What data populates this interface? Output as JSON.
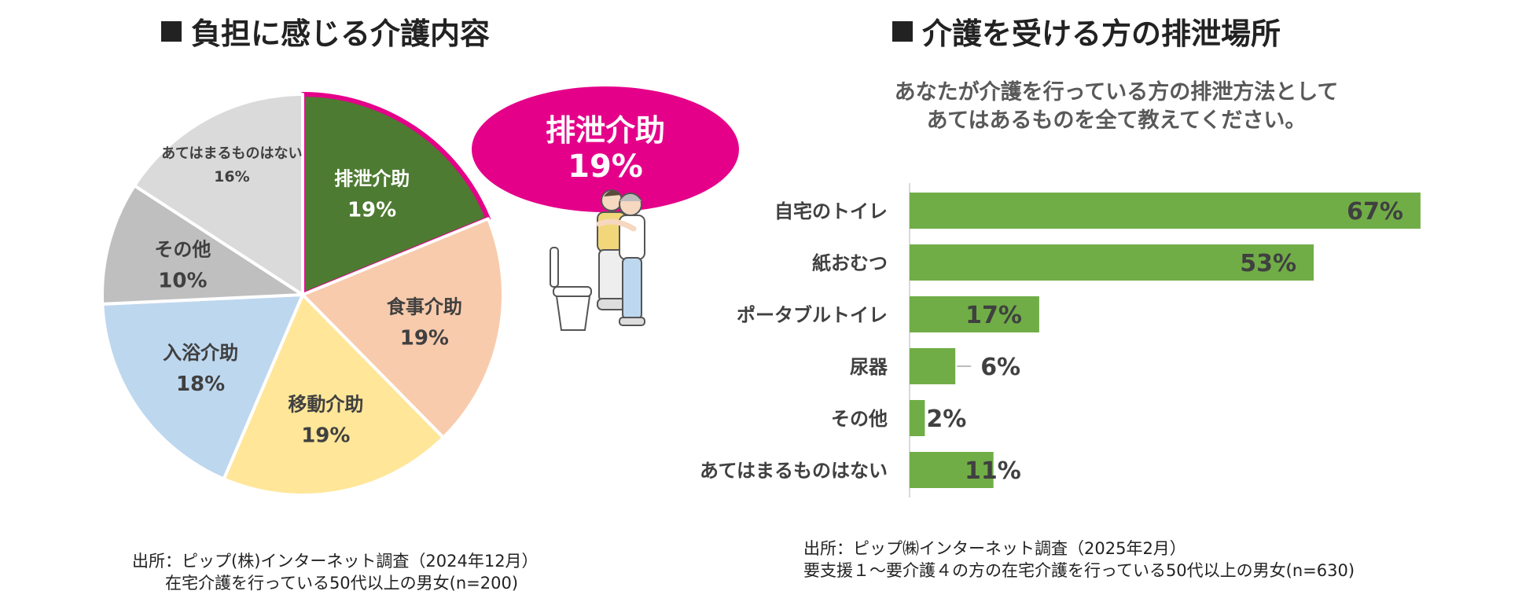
{
  "left_panel": {
    "title": "負担に感じる介護内容",
    "callout": {
      "label": "排泄介助",
      "value": "19%"
    },
    "source_line1": "出所：ピップ(株)インターネット調査（2024年12月）",
    "source_line2": "在宅介護を行っている50代以上の男女(n=200)"
  },
  "right_panel": {
    "title": "介護を受ける方の排泄場所",
    "question_line1": "あなたが介護を行っている方の排泄方法として",
    "question_line2": "あてはあるものを全て教えてください。",
    "source_line1": "出所：ピップ㈱インターネット調査（2025年2月）",
    "source_line2": "要支援１～要介護４の方の在宅介護を行っている50代以上の男女(n=630)"
  },
  "colors": {
    "highlight": "#e5008a",
    "bar": "#70ad47"
  },
  "chart_data": [
    {
      "type": "pie",
      "title": "負担に感じる介護内容",
      "slices": [
        {
          "label": "排泄介助",
          "value": 19,
          "value_label": "19%",
          "color": "#4e7b32",
          "highlight": true
        },
        {
          "label": "食事介助",
          "value": 19,
          "value_label": "19%",
          "color": "#f8cbad"
        },
        {
          "label": "移動介助",
          "value": 19,
          "value_label": "19%",
          "color": "#ffe699"
        },
        {
          "label": "入浴介助",
          "value": 18,
          "value_label": "18%",
          "color": "#bdd7ee"
        },
        {
          "label": "その他",
          "value": 10,
          "value_label": "10%",
          "color": "#bfbfbf"
        },
        {
          "label": "あてはまるものはない",
          "value": 16,
          "value_label": "16%",
          "color": "#dadada"
        }
      ]
    },
    {
      "type": "bar",
      "orientation": "horizontal",
      "title": "介護を受ける方の排泄場所",
      "categories": [
        "自宅のトイレ",
        "紙おむつ",
        "ポータブルトイレ",
        "尿器",
        "その他",
        "あてはまるものはない"
      ],
      "values": [
        67,
        53,
        17,
        6,
        2,
        11
      ],
      "value_labels": [
        "67%",
        "53%",
        "17%",
        "6%",
        "2%",
        "11%"
      ],
      "xlim": [
        0,
        100
      ],
      "grid": false,
      "color": "#70ad47"
    }
  ]
}
